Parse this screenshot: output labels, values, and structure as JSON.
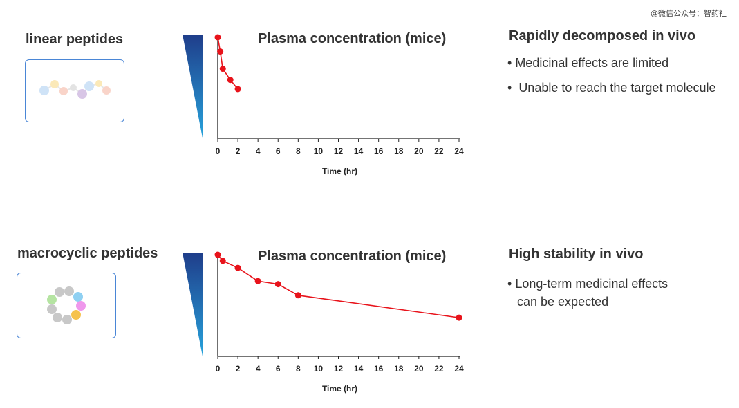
{
  "watermark": "@微信公众号：智药社",
  "colors": {
    "series": "#e8131b",
    "box_border": "#4a86d6",
    "gradient_top": "#1f3d8a",
    "gradient_bottom": "#27a3dc"
  },
  "panels": [
    {
      "section_title": "linear peptides",
      "molecule_icon": "linear-peptide-chain",
      "right_heading": "Rapidly decomposed in vivo",
      "bullets": [
        "Medicinal effects are limited",
        "Unable to reach the target molecule"
      ]
    },
    {
      "section_title": "macrocyclic peptides",
      "molecule_icon": "cyclic-peptide-ring",
      "right_heading": "High stability in vivo",
      "bullets": [
        "Long-term medicinal effects",
        "can be expected"
      ]
    }
  ],
  "chart_data": [
    {
      "type": "line",
      "title": "Plasma concentration (mice)",
      "xlabel": "Time (hr)",
      "ylabel": "",
      "x_ticks": [
        "0",
        "2",
        "4",
        "6",
        "8",
        "10",
        "12",
        "14",
        "16",
        "18",
        "20",
        "22",
        "24"
      ],
      "xlim": [
        0,
        24
      ],
      "ylim": [
        0,
        100
      ],
      "grid": false,
      "series": [
        {
          "x": [
            0,
            0.25,
            0.5,
            1.25,
            2
          ],
          "y": [
            100,
            86,
            69,
            58,
            49
          ]
        }
      ]
    },
    {
      "type": "line",
      "title": "Plasma concentration (mice)",
      "xlabel": "Time (hr)",
      "ylabel": "",
      "x_ticks": [
        "0",
        "2",
        "4",
        "6",
        "8",
        "10",
        "12",
        "14",
        "16",
        "18",
        "20",
        "22",
        "24"
      ],
      "xlim": [
        0,
        24
      ],
      "ylim": [
        0,
        100
      ],
      "grid": false,
      "series": [
        {
          "x": [
            0,
            0.5,
            2,
            4,
            6,
            8,
            24
          ],
          "y": [
            100,
            94,
            87,
            74,
            71,
            60,
            38
          ]
        }
      ]
    }
  ]
}
